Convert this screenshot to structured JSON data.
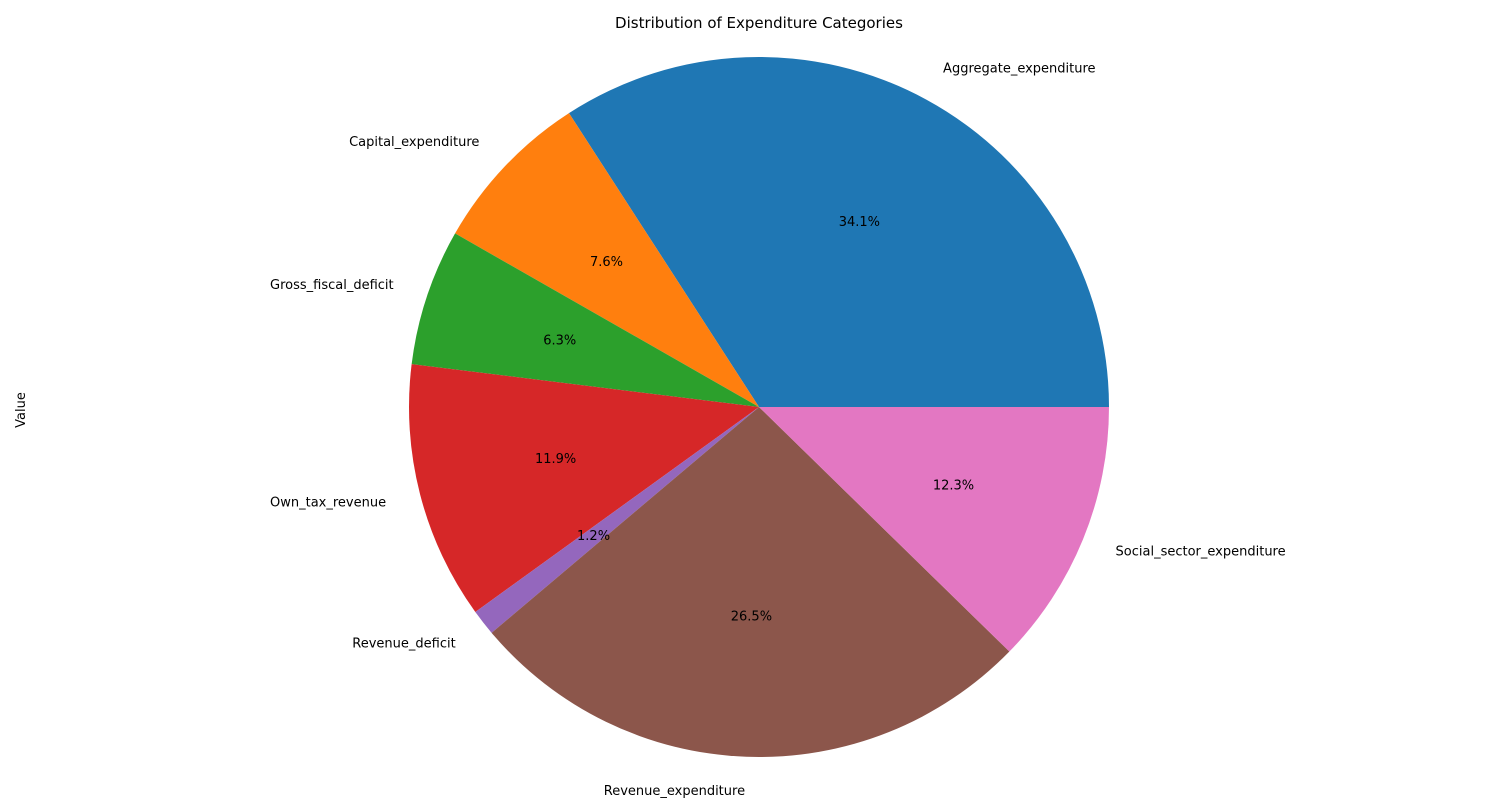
{
  "chart_data": {
    "type": "pie",
    "title": "Distribution of Expenditure Categories",
    "ylabel": "Value",
    "start_angle_deg": 0,
    "direction": "counterclockwise",
    "slices": [
      {
        "label": "Aggregate_expenditure",
        "percent": 34.1,
        "display": "34.1%",
        "color": "#1f77b4"
      },
      {
        "label": "Capital_expenditure",
        "percent": 7.6,
        "display": "7.6%",
        "color": "#ff7f0e"
      },
      {
        "label": "Gross_fiscal_deficit",
        "percent": 6.3,
        "display": "6.3%",
        "color": "#2ca02c"
      },
      {
        "label": "Own_tax_revenue",
        "percent": 11.9,
        "display": "11.9%",
        "color": "#d62728"
      },
      {
        "label": "Revenue_deficit",
        "percent": 1.2,
        "display": "1.2%",
        "color": "#9467bd"
      },
      {
        "label": "Revenue_expenditure",
        "percent": 26.5,
        "display": "26.5%",
        "color": "#8c564b"
      },
      {
        "label": "Social_sector_expenditure",
        "percent": 12.3,
        "display": "12.3%",
        "color": "#e377c2"
      }
    ]
  }
}
